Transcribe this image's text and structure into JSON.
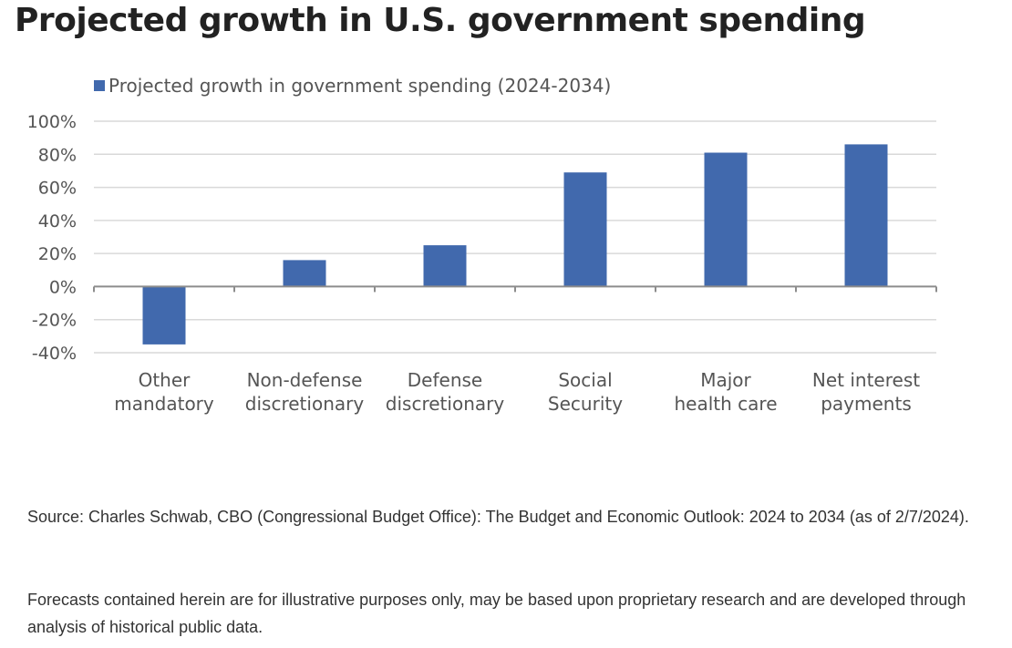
{
  "page": {
    "title": "Projected growth in U.S. government spending",
    "source_note": "Source: Charles Schwab, CBO (Congressional Budget Office): The Budget and Economic Outlook: 2024 to 2034 (as of 2/7/2024).",
    "disclaimer": "Forecasts contained herein are for illustrative purposes only, may be based upon proprietary research and are developed through analysis of historical public data."
  },
  "chart_data": {
    "type": "bar",
    "title": "",
    "xlabel": "",
    "ylabel": "",
    "categories": [
      [
        "Other",
        "mandatory"
      ],
      [
        "Non-defense",
        "discretionary"
      ],
      [
        "Defense",
        "discretionary"
      ],
      [
        "Social",
        "Security"
      ],
      [
        "Major",
        "health care"
      ],
      [
        "Net interest",
        "payments"
      ]
    ],
    "series": [
      {
        "name": "Projected growth in government spending (2024-2034)",
        "values": [
          -35,
          16,
          25,
          69,
          81,
          86
        ],
        "color": "#4169ad"
      }
    ],
    "ylim": [
      -40,
      100
    ],
    "yticks": [
      100,
      80,
      60,
      40,
      20,
      0,
      -20,
      -40
    ],
    "ytick_format": "percent",
    "grid": true,
    "legend_position": "top-left",
    "gridline_color": "#d9d9d9",
    "axis_color": "#8c8c8c"
  }
}
